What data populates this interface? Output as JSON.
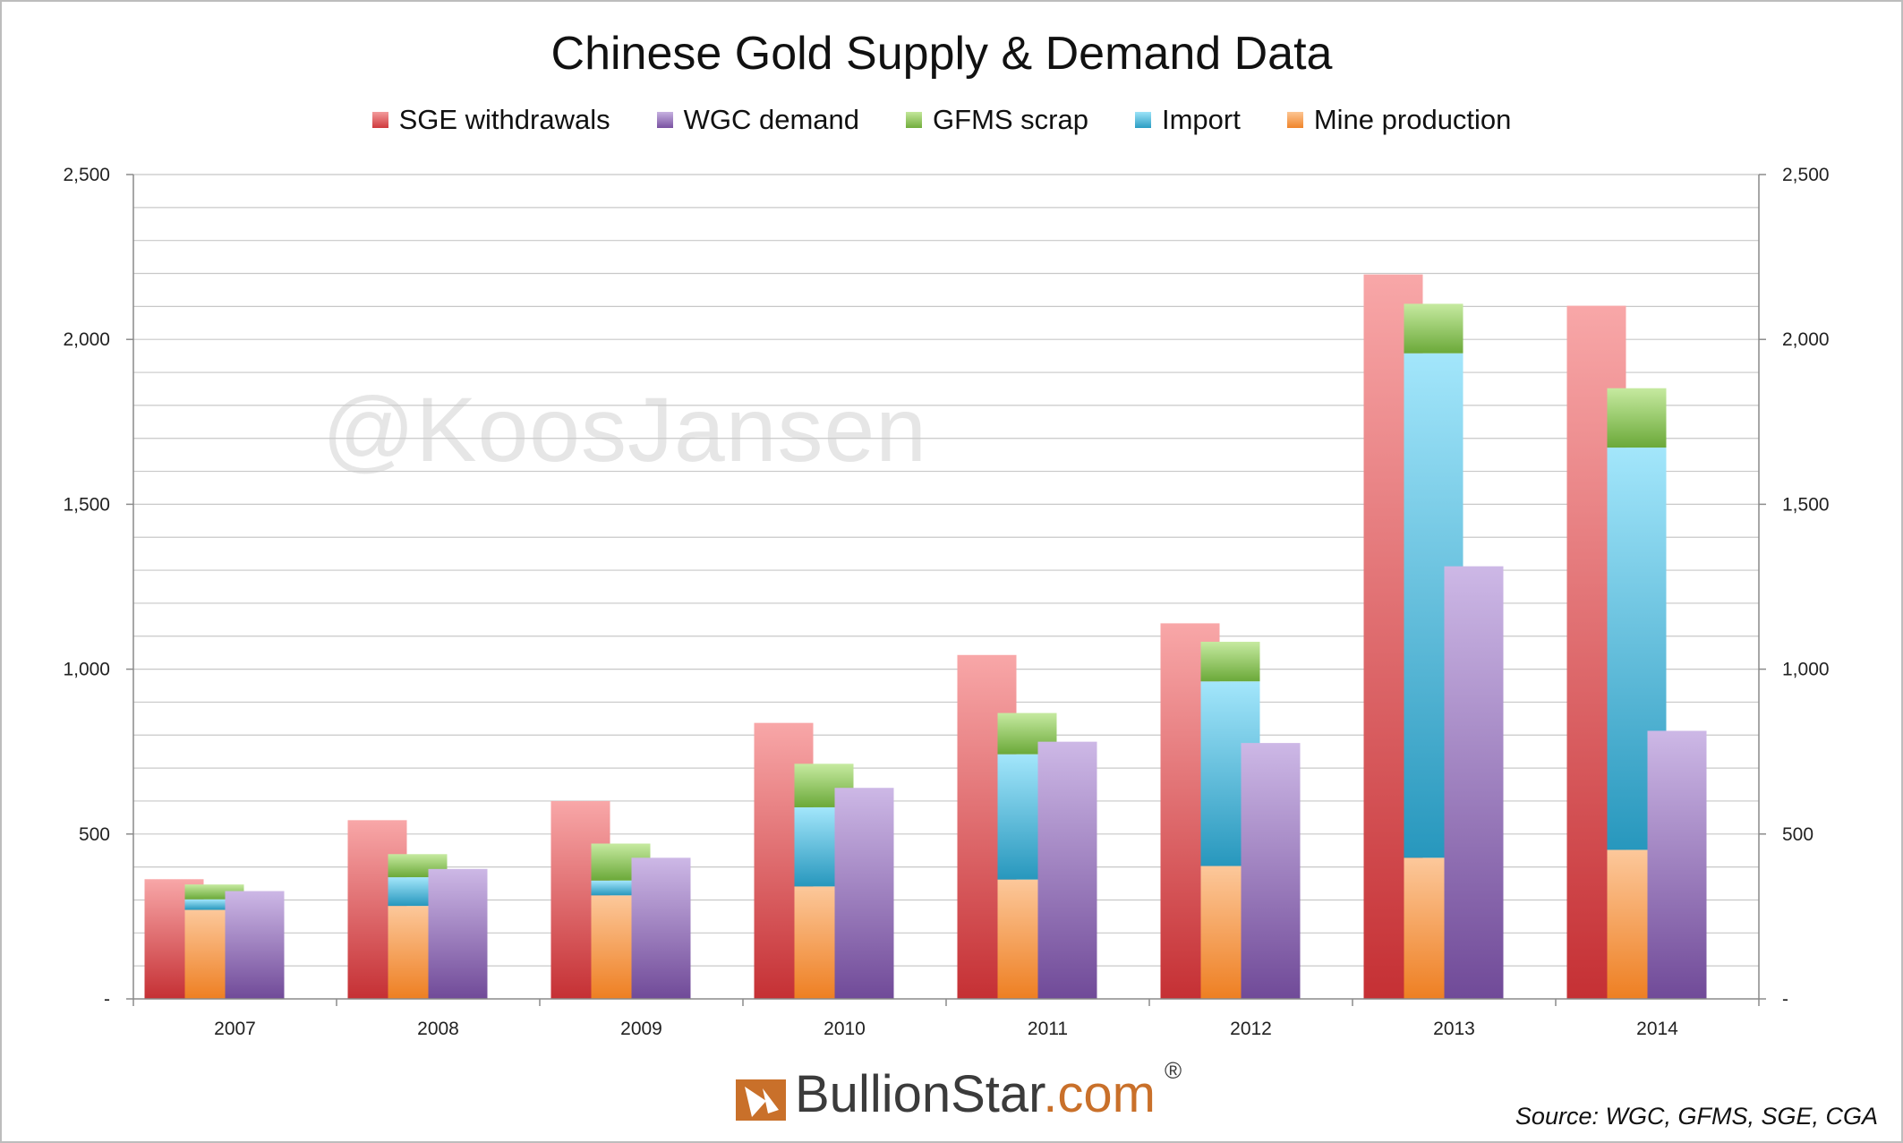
{
  "chart_data": {
    "type": "bar",
    "title": "Chinese Gold Supply & Demand Data",
    "categories": [
      "2007",
      "2008",
      "2009",
      "2010",
      "2011",
      "2012",
      "2013",
      "2014"
    ],
    "series": [
      {
        "name": "SGE withdrawals",
        "kind": "single",
        "values": [
          363,
          542,
          600,
          837,
          1043,
          1139,
          2197,
          2102
        ]
      },
      {
        "name": "Mine production",
        "kind": "stack",
        "values": [
          270,
          282,
          314,
          341,
          362,
          403,
          428,
          452
        ]
      },
      {
        "name": "Import",
        "kind": "stack",
        "values": [
          32,
          87,
          45,
          240,
          380,
          560,
          1530,
          1220
        ]
      },
      {
        "name": "GFMS scrap",
        "kind": "stack",
        "values": [
          45,
          70,
          112,
          132,
          125,
          120,
          150,
          180
        ]
      },
      {
        "name": "WGC demand",
        "kind": "single",
        "values": [
          327,
          394,
          428,
          640,
          780,
          776,
          1312,
          813
        ]
      }
    ],
    "legend_order": [
      "SGE withdrawals",
      "WGC demand",
      "GFMS scrap",
      "Import",
      "Mine production"
    ],
    "ylim": [
      0,
      2500
    ],
    "yticks": [
      0,
      500,
      1000,
      1500,
      2000,
      2500
    ],
    "ytick_labels": [
      "-",
      "500",
      "1,000",
      "1,500",
      "2,000",
      "2,500"
    ],
    "minor_grid_step": 100,
    "secondary_y_axis": true,
    "legend_position": "top",
    "colors": {
      "SGE withdrawals": "#d9474a",
      "WGC demand": "#8e66ad",
      "GFMS scrap": "#86be4f",
      "Import": "#3fb2d6",
      "Mine production": "#f79a3e"
    }
  },
  "watermark": "@KoosJansen",
  "brand": {
    "name": "BullionStar",
    "domain": ".com",
    "reg": "®"
  },
  "source": "Source: WGC, GFMS, SGE, CGA"
}
